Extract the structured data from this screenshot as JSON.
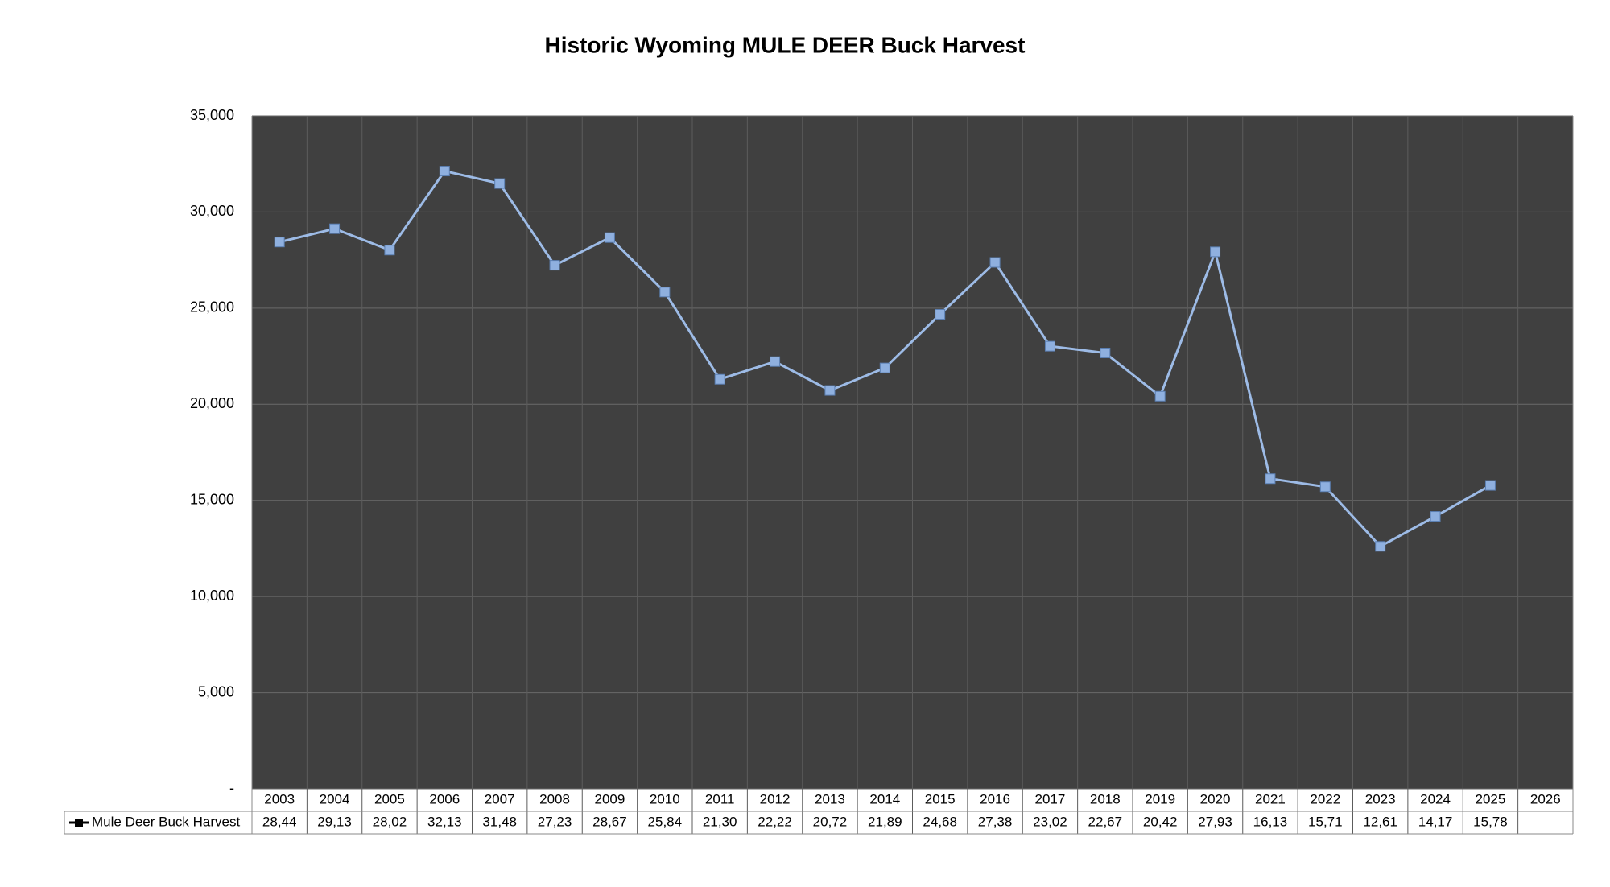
{
  "chart_data": {
    "type": "line",
    "title": "Historic Wyoming MULE DEER Buck Harvest",
    "categories": [
      "2003",
      "2004",
      "2005",
      "2006",
      "2007",
      "2008",
      "2009",
      "2010",
      "2011",
      "2012",
      "2013",
      "2014",
      "2015",
      "2016",
      "2017",
      "2018",
      "2019",
      "2020",
      "2021",
      "2022",
      "2023",
      "2024",
      "2025",
      "2026"
    ],
    "series": [
      {
        "name": "Mule Deer Buck Harvest",
        "color": "#9dbbe6",
        "values": [
          28440,
          29130,
          28020,
          32130,
          31480,
          27230,
          28670,
          25840,
          21300,
          22220,
          20720,
          21890,
          24680,
          27380,
          23020,
          22670,
          20420,
          27930,
          16130,
          15710,
          12610,
          14170,
          15780,
          null
        ],
        "value_labels": [
          "28,44",
          "29,13",
          "28,02",
          "32,13",
          "31,48",
          "27,23",
          "28,67",
          "25,84",
          "21,30",
          "22,22",
          "20,72",
          "21,89",
          "24,68",
          "27,38",
          "23,02",
          "22,67",
          "20,42",
          "27,93",
          "16,13",
          "15,71",
          "12,61",
          "14,17",
          "15,78",
          null
        ]
      }
    ],
    "ylim": [
      0,
      35000
    ],
    "yticks": [
      {
        "value": 0,
        "label": "-"
      },
      {
        "value": 5000,
        "label": "5,000"
      },
      {
        "value": 10000,
        "label": "10,000"
      },
      {
        "value": 15000,
        "label": "15,000"
      },
      {
        "value": 20000,
        "label": "20,000"
      },
      {
        "value": 25000,
        "label": "25,000"
      },
      {
        "value": 30000,
        "label": "30,000"
      },
      {
        "value": 35000,
        "label": "35,000"
      }
    ],
    "grid": true,
    "plot_background": "#404040"
  }
}
